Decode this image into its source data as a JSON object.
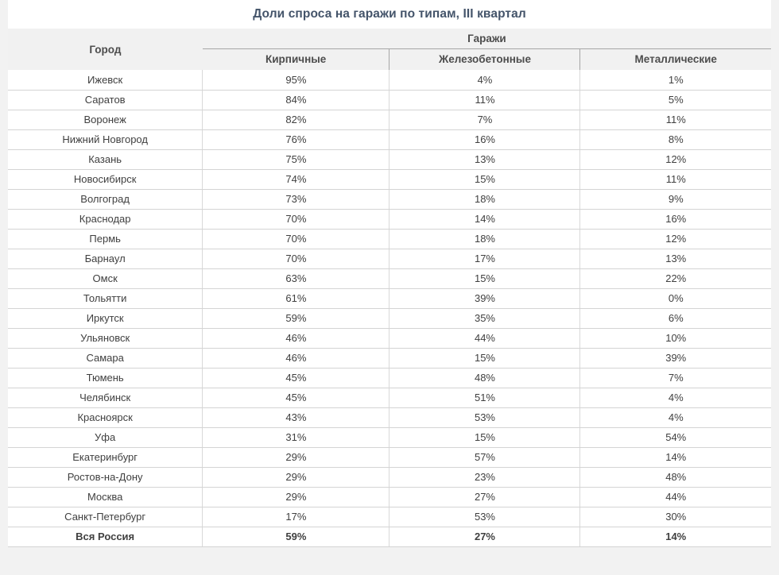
{
  "title": "Доли спроса на гаражи по типам, III квартал",
  "colors": {
    "page_bg": "#f2f2f2",
    "panel_bg": "#ffffff",
    "header_bg": "#f1f1f1",
    "title_text": "#44546a",
    "header_text": "#4d4d4d",
    "body_text": "#404040",
    "border_light": "#d4d4d4",
    "border_medium": "#a6a6a6"
  },
  "chart_data": {
    "type": "table",
    "title": "Доли спроса на гаражи по типам, III квартал",
    "column_group_label": "Гаражи",
    "columns": [
      "Город",
      "Кирпичные",
      "Железобетонные",
      "Металлические"
    ],
    "rows": [
      [
        "Ижевск",
        "95%",
        "4%",
        "1%"
      ],
      [
        "Саратов",
        "84%",
        "11%",
        "5%"
      ],
      [
        "Воронеж",
        "82%",
        "7%",
        "11%"
      ],
      [
        "Нижний Новгород",
        "76%",
        "16%",
        "8%"
      ],
      [
        "Казань",
        "75%",
        "13%",
        "12%"
      ],
      [
        "Новосибирск",
        "74%",
        "15%",
        "11%"
      ],
      [
        "Волгоград",
        "73%",
        "18%",
        "9%"
      ],
      [
        "Краснодар",
        "70%",
        "14%",
        "16%"
      ],
      [
        "Пермь",
        "70%",
        "18%",
        "12%"
      ],
      [
        "Барнаул",
        "70%",
        "17%",
        "13%"
      ],
      [
        "Омск",
        "63%",
        "15%",
        "22%"
      ],
      [
        "Тольятти",
        "61%",
        "39%",
        "0%"
      ],
      [
        "Иркутск",
        "59%",
        "35%",
        "6%"
      ],
      [
        "Ульяновск",
        "46%",
        "44%",
        "10%"
      ],
      [
        "Самара",
        "46%",
        "15%",
        "39%"
      ],
      [
        "Тюмень",
        "45%",
        "48%",
        "7%"
      ],
      [
        "Челябинск",
        "45%",
        "51%",
        "4%"
      ],
      [
        "Красноярск",
        "43%",
        "53%",
        "4%"
      ],
      [
        "Уфа",
        "31%",
        "15%",
        "54%"
      ],
      [
        "Екатеринбург",
        "29%",
        "57%",
        "14%"
      ],
      [
        "Ростов-на-Дону",
        "29%",
        "23%",
        "48%"
      ],
      [
        "Москва",
        "29%",
        "27%",
        "44%"
      ],
      [
        "Санкт-Петербург",
        "17%",
        "53%",
        "30%"
      ]
    ],
    "total_row": [
      "Вся Россия",
      "59%",
      "27%",
      "14%"
    ]
  }
}
